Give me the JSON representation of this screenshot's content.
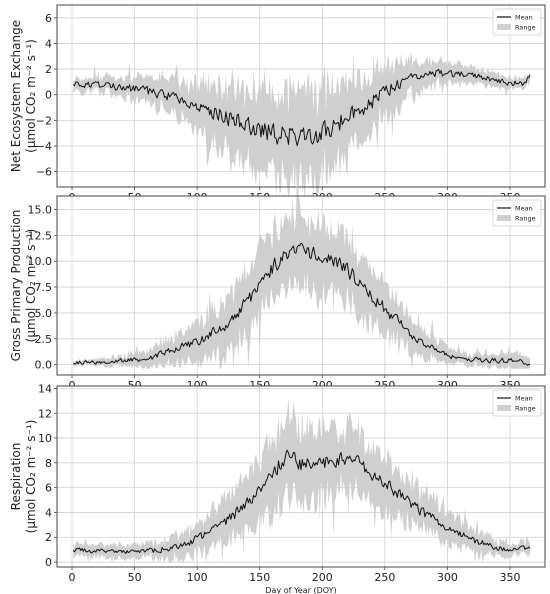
{
  "chart_data": [
    {
      "type": "line",
      "title": "",
      "ylabel_lines": [
        "Net Ecosystem Exchange",
        "(μmol CO₂ m⁻² s⁻¹)"
      ],
      "xlabel": "",
      "xlim": [
        -12,
        378
      ],
      "ylim": [
        -7.2,
        7.0
      ],
      "xticks": [
        0,
        50,
        100,
        150,
        200,
        250,
        300,
        350
      ],
      "yticks": [
        -6,
        -4,
        -2,
        0,
        2,
        4,
        6
      ],
      "grid": true,
      "legend": {
        "placement": "top-right",
        "entries": [
          "Mean",
          "Range"
        ]
      },
      "colors": {
        "mean": "#111111",
        "range": "#cfcfcf"
      },
      "mean_knots": [
        [
          1,
          0.9
        ],
        [
          20,
          0.7
        ],
        [
          40,
          0.6
        ],
        [
          60,
          0.3
        ],
        [
          80,
          -0.2
        ],
        [
          100,
          -0.8
        ],
        [
          120,
          -1.6
        ],
        [
          140,
          -2.4
        ],
        [
          160,
          -3.0
        ],
        [
          175,
          -3.2
        ],
        [
          190,
          -3.3
        ],
        [
          200,
          -3.0
        ],
        [
          210,
          -2.4
        ],
        [
          225,
          -1.5
        ],
        [
          240,
          -0.5
        ],
        [
          255,
          0.5
        ],
        [
          270,
          1.3
        ],
        [
          285,
          1.7
        ],
        [
          300,
          1.7
        ],
        [
          320,
          1.5
        ],
        [
          340,
          1.1
        ],
        [
          355,
          0.9
        ],
        [
          362,
          0.9
        ],
        [
          366,
          1.5
        ]
      ],
      "range_knots": [
        [
          1,
          0.5
        ],
        [
          20,
          0.6
        ],
        [
          40,
          0.7
        ],
        [
          60,
          1.0
        ],
        [
          80,
          1.3
        ],
        [
          100,
          1.8
        ],
        [
          120,
          2.3
        ],
        [
          140,
          2.8
        ],
        [
          160,
          3.2
        ],
        [
          175,
          3.4
        ],
        [
          190,
          3.4
        ],
        [
          200,
          3.2
        ],
        [
          210,
          3.0
        ],
        [
          225,
          2.6
        ],
        [
          240,
          2.2
        ],
        [
          255,
          1.8
        ],
        [
          270,
          1.3
        ],
        [
          285,
          1.0
        ],
        [
          300,
          0.8
        ],
        [
          320,
          0.6
        ],
        [
          340,
          0.5
        ],
        [
          355,
          0.45
        ],
        [
          366,
          0.4
        ]
      ],
      "noise": 0.55,
      "mean_clip": null,
      "low_clip": null
    },
    {
      "type": "line",
      "title": "",
      "ylabel_lines": [
        "Gross Primary Production",
        "(μmol CO₂ m⁻² s⁻¹)"
      ],
      "xlabel": "",
      "xlim": [
        -12,
        378
      ],
      "ylim": [
        -1.0,
        16.3
      ],
      "xticks": [
        0,
        50,
        100,
        150,
        200,
        250,
        300,
        350
      ],
      "yticks": [
        0.0,
        2.5,
        5.0,
        7.5,
        10.0,
        12.5,
        15.0
      ],
      "grid": true,
      "legend": {
        "placement": "top-right",
        "entries": [
          "Mean",
          "Range"
        ]
      },
      "colors": {
        "mean": "#111111",
        "range": "#cfcfcf"
      },
      "mean_knots": [
        [
          1,
          0.2
        ],
        [
          20,
          0.2
        ],
        [
          40,
          0.4
        ],
        [
          60,
          0.6
        ],
        [
          80,
          1.3
        ],
        [
          100,
          2.3
        ],
        [
          120,
          3.6
        ],
        [
          140,
          6.0
        ],
        [
          155,
          8.8
        ],
        [
          170,
          10.6
        ],
        [
          180,
          11.2
        ],
        [
          195,
          10.6
        ],
        [
          210,
          10.0
        ],
        [
          225,
          8.6
        ],
        [
          240,
          6.6
        ],
        [
          255,
          4.8
        ],
        [
          270,
          3.0
        ],
        [
          285,
          1.8
        ],
        [
          300,
          0.9
        ],
        [
          320,
          0.5
        ],
        [
          340,
          0.4
        ],
        [
          355,
          0.35
        ],
        [
          366,
          0.1
        ]
      ],
      "range_knots": [
        [
          1,
          0.2
        ],
        [
          20,
          0.3
        ],
        [
          40,
          0.5
        ],
        [
          60,
          0.8
        ],
        [
          80,
          1.3
        ],
        [
          100,
          1.8
        ],
        [
          120,
          2.4
        ],
        [
          140,
          3.0
        ],
        [
          155,
          3.3
        ],
        [
          170,
          3.5
        ],
        [
          180,
          3.4
        ],
        [
          195,
          3.3
        ],
        [
          210,
          3.2
        ],
        [
          225,
          3.0
        ],
        [
          240,
          2.6
        ],
        [
          255,
          2.2
        ],
        [
          270,
          1.7
        ],
        [
          285,
          1.2
        ],
        [
          300,
          0.8
        ],
        [
          320,
          0.5
        ],
        [
          340,
          0.6
        ],
        [
          355,
          1.0
        ],
        [
          366,
          0.5
        ]
      ],
      "noise": 0.5,
      "mean_clip": [
        -0.2,
        99
      ],
      "low_clip": -0.4
    },
    {
      "type": "line",
      "title": "",
      "ylabel_lines": [
        "Respiration",
        "(μmol CO₂ m⁻² s⁻¹)"
      ],
      "xlabel": "Day of Year (DOY)",
      "xlim": [
        -12,
        378
      ],
      "ylim": [
        -0.4,
        14.2
      ],
      "xticks": [
        0,
        50,
        100,
        150,
        200,
        250,
        300,
        350
      ],
      "yticks": [
        0,
        2,
        4,
        6,
        8,
        10,
        12,
        14
      ],
      "grid": true,
      "legend": {
        "placement": "top-right",
        "entries": [
          "Mean",
          "Range"
        ]
      },
      "colors": {
        "mean": "#111111",
        "range": "#cfcfcf"
      },
      "mean_knots": [
        [
          1,
          1.0
        ],
        [
          20,
          0.9
        ],
        [
          40,
          0.9
        ],
        [
          55,
          0.8
        ],
        [
          70,
          1.0
        ],
        [
          90,
          1.4
        ],
        [
          110,
          2.4
        ],
        [
          130,
          3.8
        ],
        [
          145,
          5.4
        ],
        [
          160,
          7.2
        ],
        [
          172,
          8.6
        ],
        [
          185,
          7.8
        ],
        [
          200,
          8.0
        ],
        [
          215,
          8.3
        ],
        [
          225,
          8.6
        ],
        [
          235,
          7.4
        ],
        [
          250,
          6.4
        ],
        [
          265,
          5.2
        ],
        [
          280,
          4.0
        ],
        [
          300,
          2.8
        ],
        [
          320,
          1.8
        ],
        [
          340,
          1.1
        ],
        [
          355,
          0.9
        ],
        [
          366,
          1.3
        ]
      ],
      "range_knots": [
        [
          1,
          0.5
        ],
        [
          20,
          0.5
        ],
        [
          40,
          0.5
        ],
        [
          55,
          0.5
        ],
        [
          70,
          0.7
        ],
        [
          90,
          1.0
        ],
        [
          110,
          1.4
        ],
        [
          130,
          1.9
        ],
        [
          145,
          2.3
        ],
        [
          160,
          2.8
        ],
        [
          172,
          3.1
        ],
        [
          185,
          3.0
        ],
        [
          200,
          2.8
        ],
        [
          215,
          2.6
        ],
        [
          225,
          2.4
        ],
        [
          235,
          2.3
        ],
        [
          250,
          2.1
        ],
        [
          265,
          1.9
        ],
        [
          280,
          1.6
        ],
        [
          300,
          1.3
        ],
        [
          320,
          0.9
        ],
        [
          340,
          0.6
        ],
        [
          355,
          0.5
        ],
        [
          366,
          0.5
        ]
      ],
      "noise": 0.45,
      "mean_clip": [
        0.2,
        99
      ],
      "low_clip": -0.1
    }
  ]
}
